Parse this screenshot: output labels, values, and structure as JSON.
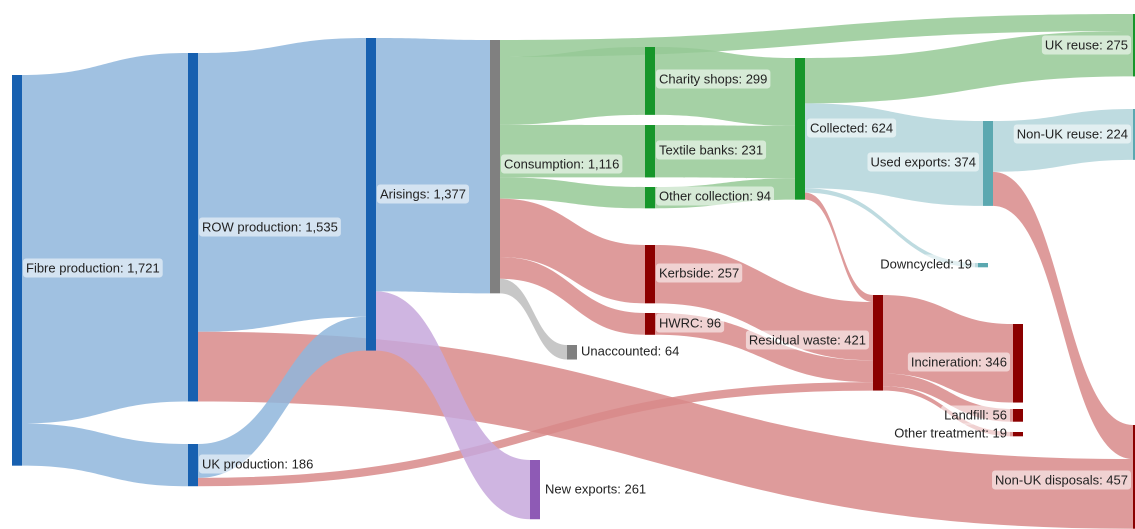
{
  "chart_data": {
    "type": "sankey",
    "nodes": [
      {
        "label": "Fibre production: 1,721",
        "value": 1721,
        "color": "#1760b0"
      },
      {
        "label": "ROW production: 1,535",
        "value": 1535,
        "color": "#1760b0"
      },
      {
        "label": "UK production: 186",
        "value": 186,
        "color": "#1760b0"
      },
      {
        "label": "Arisings: 1,377",
        "value": 1377,
        "color": "#1760b0"
      },
      {
        "label": "New exports: 261",
        "value": 261,
        "color": "#8e5ab5"
      },
      {
        "label": "Consumption: 1,116",
        "value": 1116,
        "color": "#808080"
      },
      {
        "label": "Unaccounted: 64",
        "value": 64,
        "color": "#808080"
      },
      {
        "label": "Charity shops: 299",
        "value": 299,
        "color": "#16962a"
      },
      {
        "label": "Textile banks: 231",
        "value": 231,
        "color": "#16962a"
      },
      {
        "label": "Other collection: 94",
        "value": 94,
        "color": "#16962a"
      },
      {
        "label": "Kerbside: 257",
        "value": 257,
        "color": "#8b0000"
      },
      {
        "label": "HWRC: 96",
        "value": 96,
        "color": "#8b0000"
      },
      {
        "label": "Collected: 624",
        "value": 624,
        "color": "#16962a"
      },
      {
        "label": "Residual waste: 421",
        "value": 421,
        "color": "#8b0000"
      },
      {
        "label": "UK reuse: 275",
        "value": 275,
        "color": "#16962a"
      },
      {
        "label": "Used exports: 374",
        "value": 374,
        "color": "#5ba8b0"
      },
      {
        "label": "Downcycled: 19",
        "value": 19,
        "color": "#5ba8b0"
      },
      {
        "label": "Non-UK reuse: 224",
        "value": 224,
        "color": "#5ba8b0"
      },
      {
        "label": "Incineration: 346",
        "value": 346,
        "color": "#8b0000"
      },
      {
        "label": "Landfill: 56",
        "value": 56,
        "color": "#8b0000"
      },
      {
        "label": "Other treatment: 19",
        "value": 19,
        "color": "#8b0000"
      },
      {
        "label": "Non-UK disposals: 457",
        "value": 457,
        "color": "#8b0000"
      }
    ],
    "links": [
      {
        "source": 0,
        "target": 1,
        "value": 1535,
        "color": "#8fb6dc"
      },
      {
        "source": 0,
        "target": 2,
        "value": 186,
        "color": "#8fb6dc"
      },
      {
        "source": 1,
        "target": 3,
        "value": 1228,
        "color": "#8fb6dc"
      },
      {
        "source": 1,
        "target": 21,
        "value": 307,
        "color": "#d88a8a"
      },
      {
        "source": 2,
        "target": 3,
        "value": 149,
        "color": "#8fb6dc"
      },
      {
        "source": 2,
        "target": 13,
        "value": 37,
        "color": "#d88a8a"
      },
      {
        "source": 3,
        "target": 5,
        "value": 1116,
        "color": "#8fb6dc"
      },
      {
        "source": 3,
        "target": 4,
        "value": 261,
        "color": "#c7a8dc"
      },
      {
        "source": 5,
        "target": 14,
        "value": 75,
        "color": "#95c995"
      },
      {
        "source": 5,
        "target": 7,
        "value": 299,
        "color": "#95c995"
      },
      {
        "source": 5,
        "target": 8,
        "value": 231,
        "color": "#95c995"
      },
      {
        "source": 5,
        "target": 9,
        "value": 94,
        "color": "#95c995"
      },
      {
        "source": 5,
        "target": 10,
        "value": 257,
        "color": "#d88a8a"
      },
      {
        "source": 5,
        "target": 11,
        "value": 96,
        "color": "#d88a8a"
      },
      {
        "source": 5,
        "target": 6,
        "value": 64,
        "color": "#bdbdbd"
      },
      {
        "source": 7,
        "target": 12,
        "value": 299,
        "color": "#95c995"
      },
      {
        "source": 8,
        "target": 12,
        "value": 231,
        "color": "#95c995"
      },
      {
        "source": 9,
        "target": 12,
        "value": 94,
        "color": "#95c995"
      },
      {
        "source": 10,
        "target": 13,
        "value": 257,
        "color": "#d88a8a"
      },
      {
        "source": 11,
        "target": 13,
        "value": 96,
        "color": "#d88a8a"
      },
      {
        "source": 12,
        "target": 14,
        "value": 200,
        "color": "#95c995"
      },
      {
        "source": 12,
        "target": 15,
        "value": 374,
        "color": "#b3d5da"
      },
      {
        "source": 12,
        "target": 16,
        "value": 19,
        "color": "#b3d5da"
      },
      {
        "source": 12,
        "target": 13,
        "value": 31,
        "color": "#d88a8a"
      },
      {
        "source": 15,
        "target": 17,
        "value": 224,
        "color": "#b3d5da"
      },
      {
        "source": 15,
        "target": 21,
        "value": 150,
        "color": "#d88a8a"
      },
      {
        "source": 13,
        "target": 18,
        "value": 346,
        "color": "#d88a8a"
      },
      {
        "source": 13,
        "target": 19,
        "value": 56,
        "color": "#d88a8a"
      },
      {
        "source": 13,
        "target": 20,
        "value": 19,
        "color": "#d88a8a"
      }
    ]
  }
}
